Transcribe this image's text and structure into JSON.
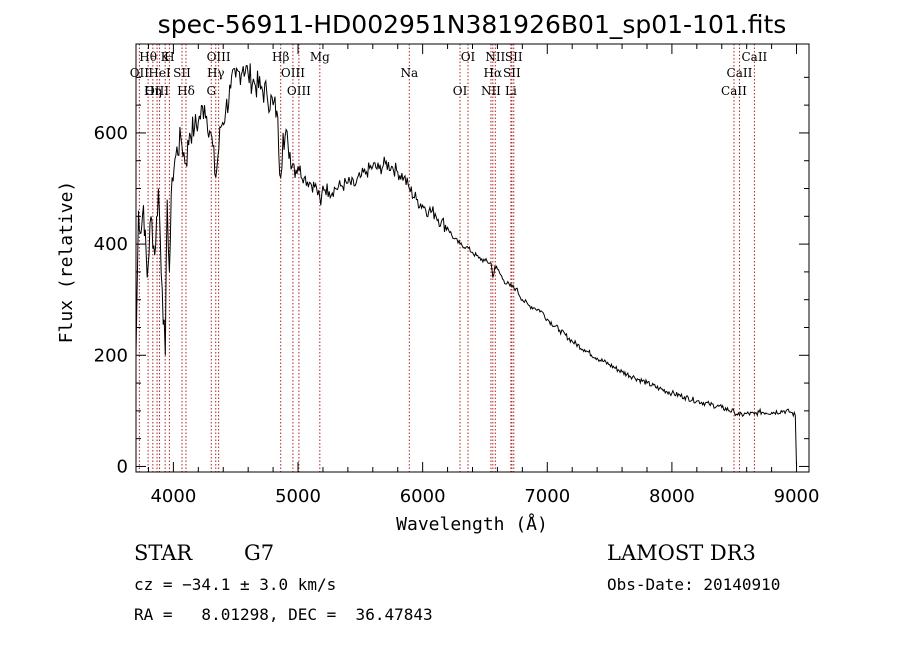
{
  "chart_data": {
    "type": "line",
    "title": "spec-56911-HD002951N381926B01_sp01-101.fits",
    "xlabel": "Wavelength (Å)",
    "ylabel": "Flux (relative)",
    "xlim": [
      3700,
      9100
    ],
    "ylim": [
      -10,
      760
    ],
    "x_ticks": [
      4000,
      5000,
      6000,
      7000,
      8000,
      9000
    ],
    "x_tick_labels": [
      "4000",
      "5000",
      "6000",
      "7000",
      "8000",
      "9000"
    ],
    "y_ticks": [
      0,
      200,
      400,
      600
    ],
    "y_tick_labels": [
      "0",
      "200",
      "400",
      "600"
    ],
    "series": [
      {
        "name": "spectrum",
        "x": [
          3700,
          3720,
          3740,
          3760,
          3790,
          3820,
          3850,
          3880,
          3910,
          3935,
          3950,
          3968,
          3990,
          4020,
          4060,
          4101,
          4130,
          4170,
          4200,
          4250,
          4300,
          4340,
          4380,
          4420,
          4460,
          4500,
          4530,
          4560,
          4600,
          4650,
          4700,
          4750,
          4800,
          4830,
          4861,
          4880,
          4920,
          4960,
          5000,
          5050,
          5100,
          5150,
          5183,
          5200,
          5250,
          5300,
          5350,
          5400,
          5450,
          5500,
          5550,
          5600,
          5650,
          5700,
          5750,
          5800,
          5850,
          5893,
          5950,
          6000,
          6050,
          6100,
          6150,
          6200,
          6250,
          6300,
          6350,
          6400,
          6450,
          6500,
          6550,
          6563,
          6580,
          6600,
          6650,
          6700,
          6750,
          6800,
          6850,
          6900,
          6950,
          7000,
          7100,
          7200,
          7300,
          7400,
          7500,
          7600,
          7700,
          7800,
          7900,
          8000,
          8100,
          8200,
          8300,
          8400,
          8500,
          8542,
          8600,
          8662,
          8700,
          8800,
          8900,
          8950,
          8990,
          9000
        ],
        "values": [
          200,
          460,
          420,
          470,
          340,
          450,
          380,
          500,
          320,
          200,
          480,
          350,
          520,
          560,
          590,
          545,
          600,
          610,
          620,
          650,
          600,
          520,
          610,
          640,
          680,
          700,
          710,
          720,
          705,
          690,
          680,
          670,
          650,
          640,
          520,
          600,
          580,
          545,
          540,
          520,
          510,
          500,
          470,
          505,
          495,
          500,
          505,
          510,
          505,
          520,
          530,
          540,
          535,
          545,
          540,
          530,
          520,
          500,
          480,
          470,
          460,
          455,
          440,
          430,
          410,
          400,
          395,
          385,
          375,
          370,
          365,
          340,
          360,
          355,
          335,
          325,
          320,
          300,
          290,
          285,
          280,
          265,
          245,
          225,
          210,
          195,
          183,
          170,
          160,
          150,
          140,
          132,
          125,
          118,
          112,
          106,
          98,
          92,
          95,
          94,
          98,
          97,
          100,
          98,
          92,
          0
        ]
      }
    ],
    "spectral_lines": [
      {
        "label": "Hθ",
        "wavelength": 3797
      },
      {
        "label": "OII",
        "wavelength": 3727
      },
      {
        "label": "OIII",
        "wavelength": 3869
      },
      {
        "label": "K",
        "wavelength": 3934
      },
      {
        "label": "HeI",
        "wavelength": 3889
      },
      {
        "label": "Hη",
        "wavelength": 3835
      },
      {
        "label": "H",
        "wavelength": 3968
      },
      {
        "label": "SII",
        "wavelength": 4069
      },
      {
        "label": "Hδ",
        "wavelength": 4101
      },
      {
        "label": "OIII",
        "wavelength": 4363
      },
      {
        "label": "Hγ",
        "wavelength": 4340
      },
      {
        "label": "G",
        "wavelength": 4304
      },
      {
        "label": "Hβ",
        "wavelength": 4861
      },
      {
        "label": "OIII",
        "wavelength": 4959
      },
      {
        "label": "OIII",
        "wavelength": 5007
      },
      {
        "label": "Mg",
        "wavelength": 5175
      },
      {
        "label": "Na",
        "wavelength": 5893
      },
      {
        "label": "OI",
        "wavelength": 6300
      },
      {
        "label": "OI",
        "wavelength": 6364
      },
      {
        "label": "Hα",
        "wavelength": 6563
      },
      {
        "label": "NII",
        "wavelength": 6548
      },
      {
        "label": "NII",
        "wavelength": 6583
      },
      {
        "label": "SII",
        "wavelength": 6716
      },
      {
        "label": "Li",
        "wavelength": 6708
      },
      {
        "label": "SII",
        "wavelength": 6731
      },
      {
        "label": "CaII",
        "wavelength": 8542
      },
      {
        "label": "CaII",
        "wavelength": 8498
      },
      {
        "label": "CaII",
        "wavelength": 8662
      }
    ]
  },
  "info": {
    "object_class": "STAR",
    "subclass": "G7",
    "survey": "LAMOST DR3",
    "cz": "cz = −34.1 ± 3.0 km/s",
    "obs_date": "Obs-Date: 20140910",
    "coords": "RA =   8.01298, DEC =  36.47843"
  }
}
